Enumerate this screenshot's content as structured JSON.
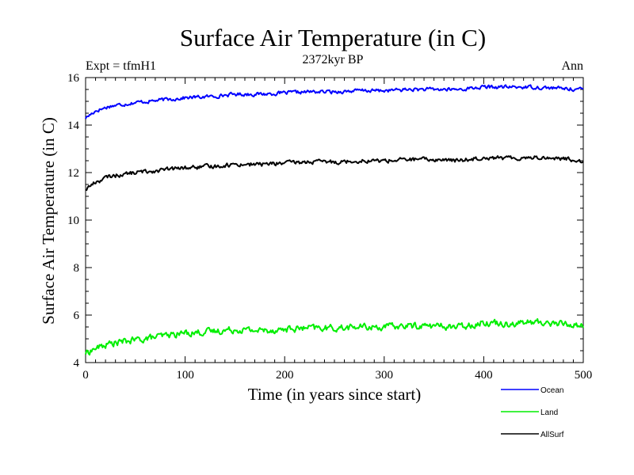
{
  "chart_data": {
    "type": "line",
    "title": "Surface Air Temperature (in C)",
    "subtitle": "2372kyr BP",
    "left_label": "Expt = tfmH1",
    "right_label": "Ann",
    "xlabel": "Time (in years since start)",
    "ylabel": "Surface Air Temperature (in C)",
    "xlim": [
      0,
      500
    ],
    "ylim": [
      4,
      16
    ],
    "xticks": [
      0,
      100,
      200,
      300,
      400,
      500
    ],
    "yticks": [
      4,
      6,
      8,
      10,
      12,
      14,
      16
    ],
    "legend_position": "bottom-right, below plot",
    "series": [
      {
        "name": "Ocean",
        "color": "#0000ff",
        "x": [
          0,
          10,
          25,
          50,
          75,
          100,
          125,
          150,
          175,
          200,
          225,
          250,
          275,
          300,
          325,
          350,
          375,
          400,
          425,
          450,
          475,
          500
        ],
        "y": [
          14.3,
          14.6,
          14.8,
          14.95,
          15.05,
          15.15,
          15.2,
          15.3,
          15.3,
          15.35,
          15.4,
          15.4,
          15.45,
          15.45,
          15.5,
          15.5,
          15.5,
          15.6,
          15.6,
          15.6,
          15.55,
          15.5
        ],
        "noise": 0.12
      },
      {
        "name": "Land",
        "color": "#00ee00",
        "x": [
          0,
          10,
          25,
          50,
          75,
          100,
          125,
          150,
          175,
          200,
          225,
          250,
          275,
          300,
          325,
          350,
          375,
          400,
          425,
          450,
          475,
          500
        ],
        "y": [
          4.4,
          4.6,
          4.8,
          4.95,
          5.1,
          5.25,
          5.3,
          5.4,
          5.35,
          5.4,
          5.45,
          5.45,
          5.5,
          5.5,
          5.55,
          5.55,
          5.5,
          5.7,
          5.65,
          5.7,
          5.65,
          5.55
        ],
        "noise": 0.22
      },
      {
        "name": "AllSurf",
        "color": "#000000",
        "x": [
          0,
          10,
          25,
          50,
          75,
          100,
          125,
          150,
          175,
          200,
          225,
          250,
          275,
          300,
          325,
          350,
          375,
          400,
          425,
          450,
          475,
          500
        ],
        "y": [
          11.3,
          11.6,
          11.85,
          12.0,
          12.1,
          12.2,
          12.25,
          12.35,
          12.35,
          12.4,
          12.45,
          12.45,
          12.5,
          12.5,
          12.55,
          12.55,
          12.5,
          12.65,
          12.6,
          12.65,
          12.6,
          12.5
        ],
        "noise": 0.14
      }
    ]
  }
}
